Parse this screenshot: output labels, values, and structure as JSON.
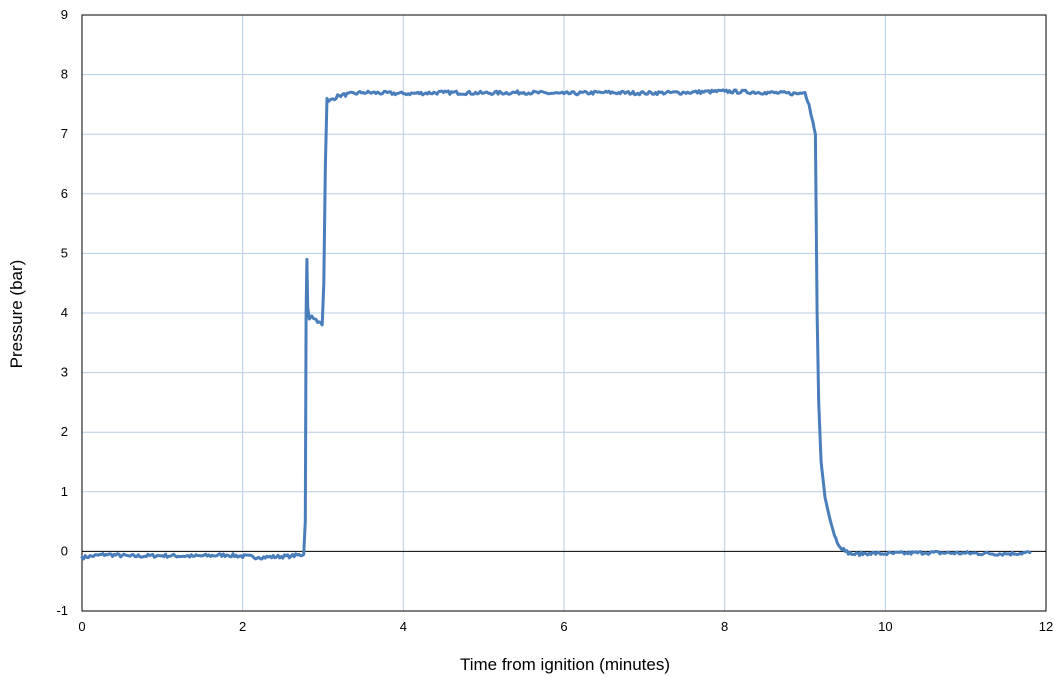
{
  "chart_data": {
    "type": "line",
    "title": "",
    "xlabel": "Time from ignition (minutes)",
    "ylabel": "Pressure (bar)",
    "xlim": [
      0,
      12
    ],
    "ylim": [
      -1,
      9
    ],
    "x_ticks": [
      "0",
      "2",
      "4",
      "6",
      "8",
      "10",
      "12"
    ],
    "y_ticks": [
      "-1",
      "0",
      "1",
      "2",
      "3",
      "4",
      "5",
      "6",
      "7",
      "8",
      "9"
    ],
    "grid": true,
    "legend": "none",
    "line_color": "#4a7ebb",
    "grid_color": "#b9cde5",
    "series": [
      {
        "x": [
          0,
          0.3,
          0.6,
          1.0,
          1.4,
          1.8,
          2.2,
          2.6,
          2.76,
          2.78,
          2.79,
          2.8,
          2.81,
          2.83,
          2.86,
          2.9,
          2.95,
          2.99,
          3.01,
          3.03,
          3.05,
          3.07,
          3.2,
          3.5,
          4.0,
          4.5,
          5.0,
          5.5,
          6.0,
          6.5,
          7.0,
          7.5,
          8.0,
          8.5,
          8.9,
          9.0,
          9.05,
          9.1,
          9.13,
          9.15,
          9.17,
          9.2,
          9.25,
          9.3,
          9.35,
          9.4,
          9.5,
          9.6,
          9.8,
          10.0,
          10.5,
          11.0,
          11.5,
          11.8
        ],
        "y": [
          -0.1,
          -0.05,
          -0.08,
          -0.07,
          -0.08,
          -0.06,
          -0.1,
          -0.08,
          -0.05,
          0.5,
          4.0,
          4.9,
          4.1,
          3.9,
          3.95,
          3.9,
          3.85,
          3.8,
          4.5,
          6.5,
          7.6,
          7.55,
          7.65,
          7.7,
          7.68,
          7.7,
          7.69,
          7.7,
          7.68,
          7.7,
          7.69,
          7.7,
          7.72,
          7.7,
          7.68,
          7.7,
          7.5,
          7.2,
          7.0,
          4.0,
          2.5,
          1.5,
          0.9,
          0.6,
          0.35,
          0.15,
          0.0,
          -0.05,
          -0.03,
          -0.04,
          -0.02,
          -0.03,
          -0.04,
          -0.02
        ]
      }
    ]
  }
}
